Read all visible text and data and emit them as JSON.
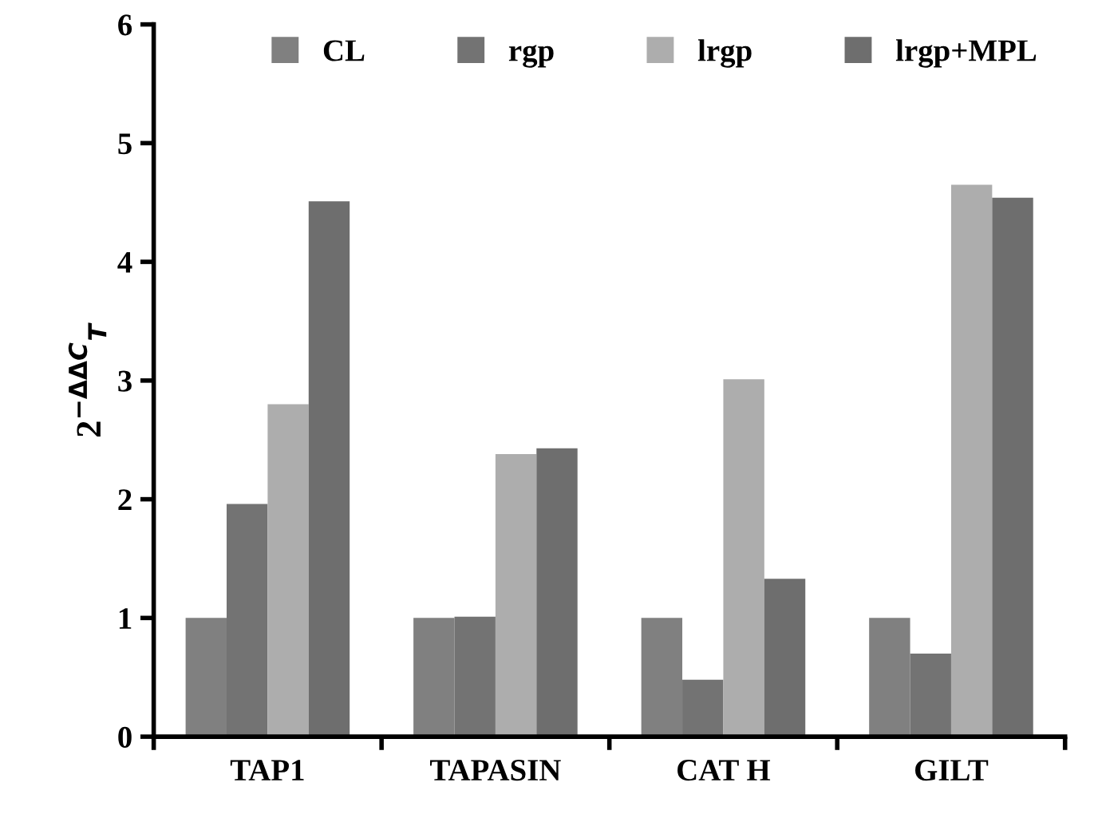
{
  "chart_data": {
    "type": "bar",
    "ylabel": "2$^{−ΔΔC}$$_{T}$",
    "categories": [
      "TAP1",
      "TAPASIN",
      "CAT H",
      "GILT"
    ],
    "series": [
      {
        "name": "CL",
        "color": "#808080",
        "values": [
          1.0,
          1.0,
          1.0,
          1.0
        ]
      },
      {
        "name": "rgp",
        "color": "#737373",
        "values": [
          1.96,
          1.01,
          0.48,
          0.7
        ]
      },
      {
        "name": "lrgp",
        "color": "#adadad",
        "values": [
          2.8,
          2.38,
          3.01,
          4.65
        ]
      },
      {
        "name": "lrgp+MPL",
        "color": "#6e6e6e",
        "values": [
          4.51,
          2.43,
          1.33,
          4.54
        ]
      }
    ],
    "ylim": [
      0,
      6
    ],
    "yticks": [
      0,
      1,
      2,
      3,
      4,
      5,
      6
    ],
    "grid": false,
    "legend": "top"
  }
}
